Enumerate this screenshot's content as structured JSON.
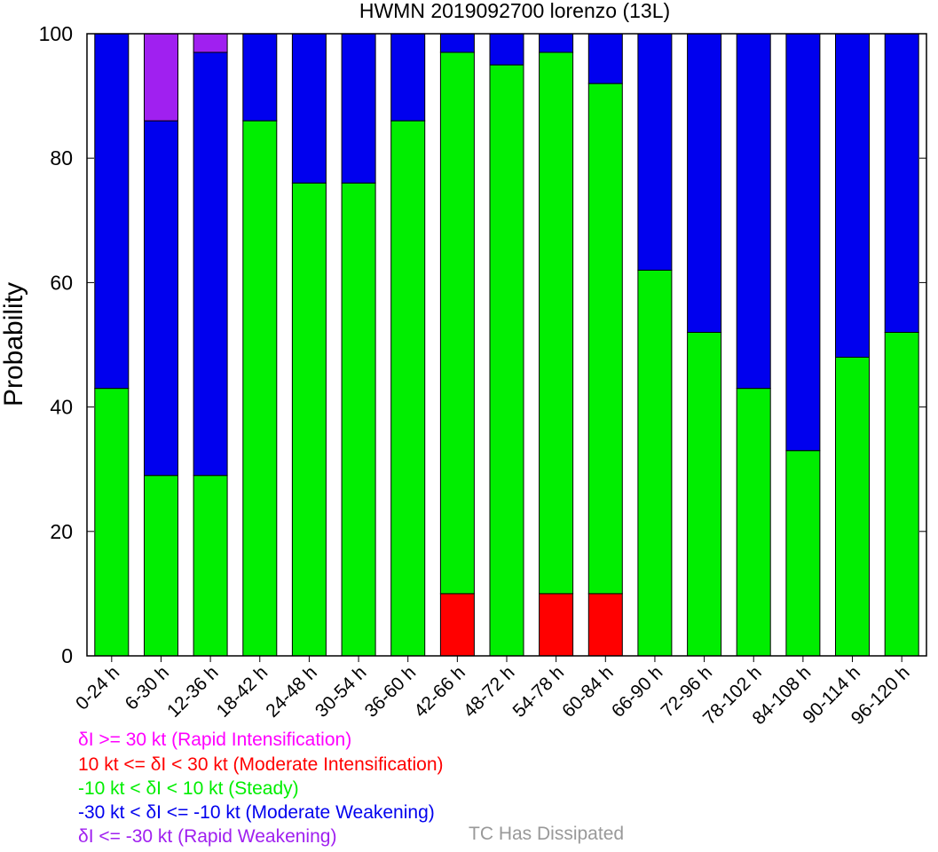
{
  "chart_data": {
    "type": "bar",
    "stacked": true,
    "title": "HWMN 2019092700 lorenzo (13L)",
    "ylabel": "Probability",
    "xlabel": "",
    "ylim": [
      0,
      100
    ],
    "yticks": [
      0,
      20,
      40,
      60,
      80,
      100
    ],
    "categories": [
      "0-24 h",
      "6-30 h",
      "12-36 h",
      "18-42 h",
      "24-48 h",
      "30-54 h",
      "36-60 h",
      "42-66 h",
      "48-72 h",
      "54-78 h",
      "60-84 h",
      "66-90 h",
      "72-96 h",
      "78-102 h",
      "84-108 h",
      "90-114 h",
      "96-120 h"
    ],
    "series": [
      {
        "name": "10 kt <= δI < 30 kt (Moderate Intensification)",
        "color": "#ff0000",
        "values": [
          0,
          0,
          0,
          0,
          0,
          0,
          0,
          10,
          0,
          10,
          10,
          0,
          0,
          0,
          0,
          0,
          0
        ]
      },
      {
        "name": "-10 kt < δI < 10 kt (Steady)",
        "color": "#00ee00",
        "values": [
          43,
          29,
          29,
          86,
          76,
          76,
          86,
          87,
          95,
          87,
          82,
          62,
          52,
          43,
          33,
          48,
          52
        ]
      },
      {
        "name": "-30 kt < δI <= -10 kt (Moderate Weakening)",
        "color": "#0000ee",
        "values": [
          57,
          57,
          68,
          14,
          24,
          24,
          14,
          3,
          5,
          3,
          8,
          38,
          48,
          57,
          67,
          52,
          48
        ]
      },
      {
        "name": "δI <= -30 kt (Rapid Weakening)",
        "color": "#a020f0",
        "values": [
          0,
          14,
          3,
          0,
          0,
          0,
          0,
          0,
          0,
          0,
          0,
          0,
          0,
          0,
          0,
          0,
          0
        ]
      },
      {
        "name": "δI >= 30 kt (Rapid Intensification)",
        "color": "#ff00ff",
        "values": [
          0,
          0,
          0,
          0,
          0,
          0,
          0,
          0,
          0,
          0,
          0,
          0,
          0,
          0,
          0,
          0,
          0
        ]
      }
    ],
    "grid": false,
    "legend_placement": "bottom-left"
  },
  "legend": {
    "ri": {
      "label": "δI >= 30 kt (Rapid Intensification)",
      "color": "#ff00ff"
    },
    "mi": {
      "label": "10 kt <= δI < 30 kt (Moderate Intensification)",
      "color": "#ff0000"
    },
    "steady": {
      "label": "-10 kt < δI < 10 kt (Steady)",
      "color": "#00ee00"
    },
    "mw": {
      "label": "-30 kt < δI <= -10 kt (Moderate Weakening)",
      "color": "#0000ee"
    },
    "rw": {
      "label": "δI <= -30 kt (Rapid Weakening)",
      "color": "#a020f0"
    },
    "dissipated": {
      "label": "TC Has Dissipated",
      "color": "#999999"
    }
  }
}
